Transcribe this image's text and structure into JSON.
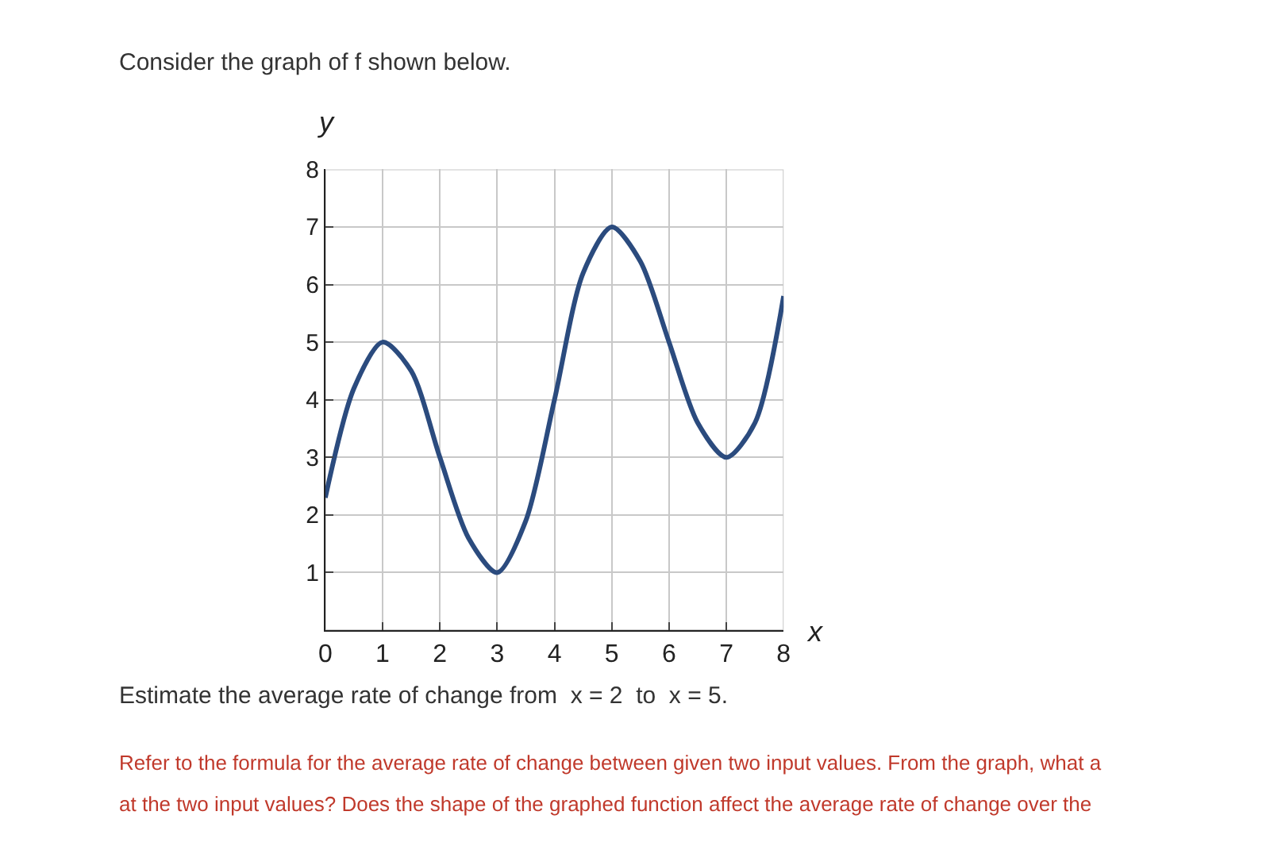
{
  "chart_data": {
    "type": "line",
    "title": "Consider the graph of f shown below.",
    "xlabel": "x",
    "ylabel": "y",
    "x": [
      0,
      0.5,
      1,
      1.5,
      2,
      2.5,
      3,
      3.5,
      4,
      4.5,
      5,
      5.5,
      6,
      6.5,
      7,
      7.5,
      8
    ],
    "series": [
      {
        "color": "#2b4b7e",
        "values": [
          2.3,
          4.2,
          5,
          4.5,
          3,
          1.6,
          1,
          1.9,
          4,
          6.2,
          7,
          6.4,
          5,
          3.6,
          3,
          3.6,
          5.8
        ]
      }
    ],
    "xlim": [
      0,
      8
    ],
    "ylim": [
      0,
      8
    ],
    "xticks": [
      0,
      1,
      2,
      3,
      4,
      5,
      6,
      7,
      8
    ],
    "yticks": [
      1,
      2,
      3,
      4,
      5,
      6,
      7,
      8
    ],
    "grid": true,
    "marker": "none",
    "line_style": "solid",
    "annotations": [
      "Estimate the average rate of change from  x = 2  to  x = 5.",
      "Refer to the formula for the average rate of change between given two input values. From the graph, what a",
      "at the two input values? Does the shape of the graphed function affect the average rate of change over the"
    ]
  }
}
